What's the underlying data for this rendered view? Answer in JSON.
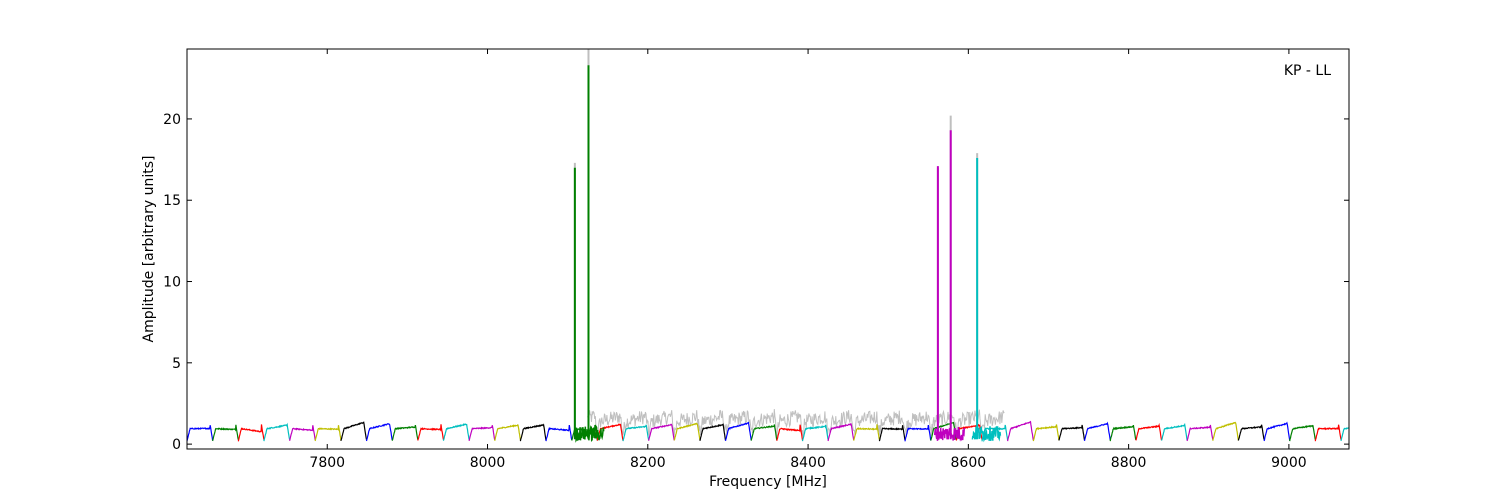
{
  "chart_data": {
    "type": "line",
    "xlabel": "Frequency [MHz]",
    "ylabel": "Amplitude [arbitrary units]",
    "annotation": "KP - LL",
    "annotation_position": "top-right",
    "xlim": [
      7625,
      9075
    ],
    "ylim": [
      -0.3,
      24.3
    ],
    "x_ticks": [
      7800,
      8000,
      8200,
      8400,
      8600,
      8800,
      9000
    ],
    "y_ticks": [
      0,
      5,
      10,
      15,
      20
    ],
    "grid": false,
    "legend": false,
    "channel_width_mhz": 32,
    "channel_start_mhz": 7625,
    "palette": [
      "#0000ff",
      "#008000",
      "#ff0000",
      "#00bfbf",
      "#bf00bf",
      "#bfbf00",
      "#000000"
    ],
    "background_color": "#bfbfbf",
    "background_range": [
      8125,
      8645
    ],
    "spikes": [
      {
        "x": 8109,
        "height": 17.0,
        "color": "#008000",
        "bg_height": 17.3
      },
      {
        "x": 8126,
        "height": 23.3,
        "color": "#008000",
        "bg_height": 24.3
      },
      {
        "x": 8562,
        "height": 17.1,
        "color": "#bf00bf",
        "bg_height": 17.0
      },
      {
        "x": 8578,
        "height": 19.3,
        "color": "#bf00bf",
        "bg_height": 20.2
      },
      {
        "x": 8611,
        "height": 17.6,
        "color": "#00bfbf",
        "bg_height": 17.9
      }
    ]
  }
}
